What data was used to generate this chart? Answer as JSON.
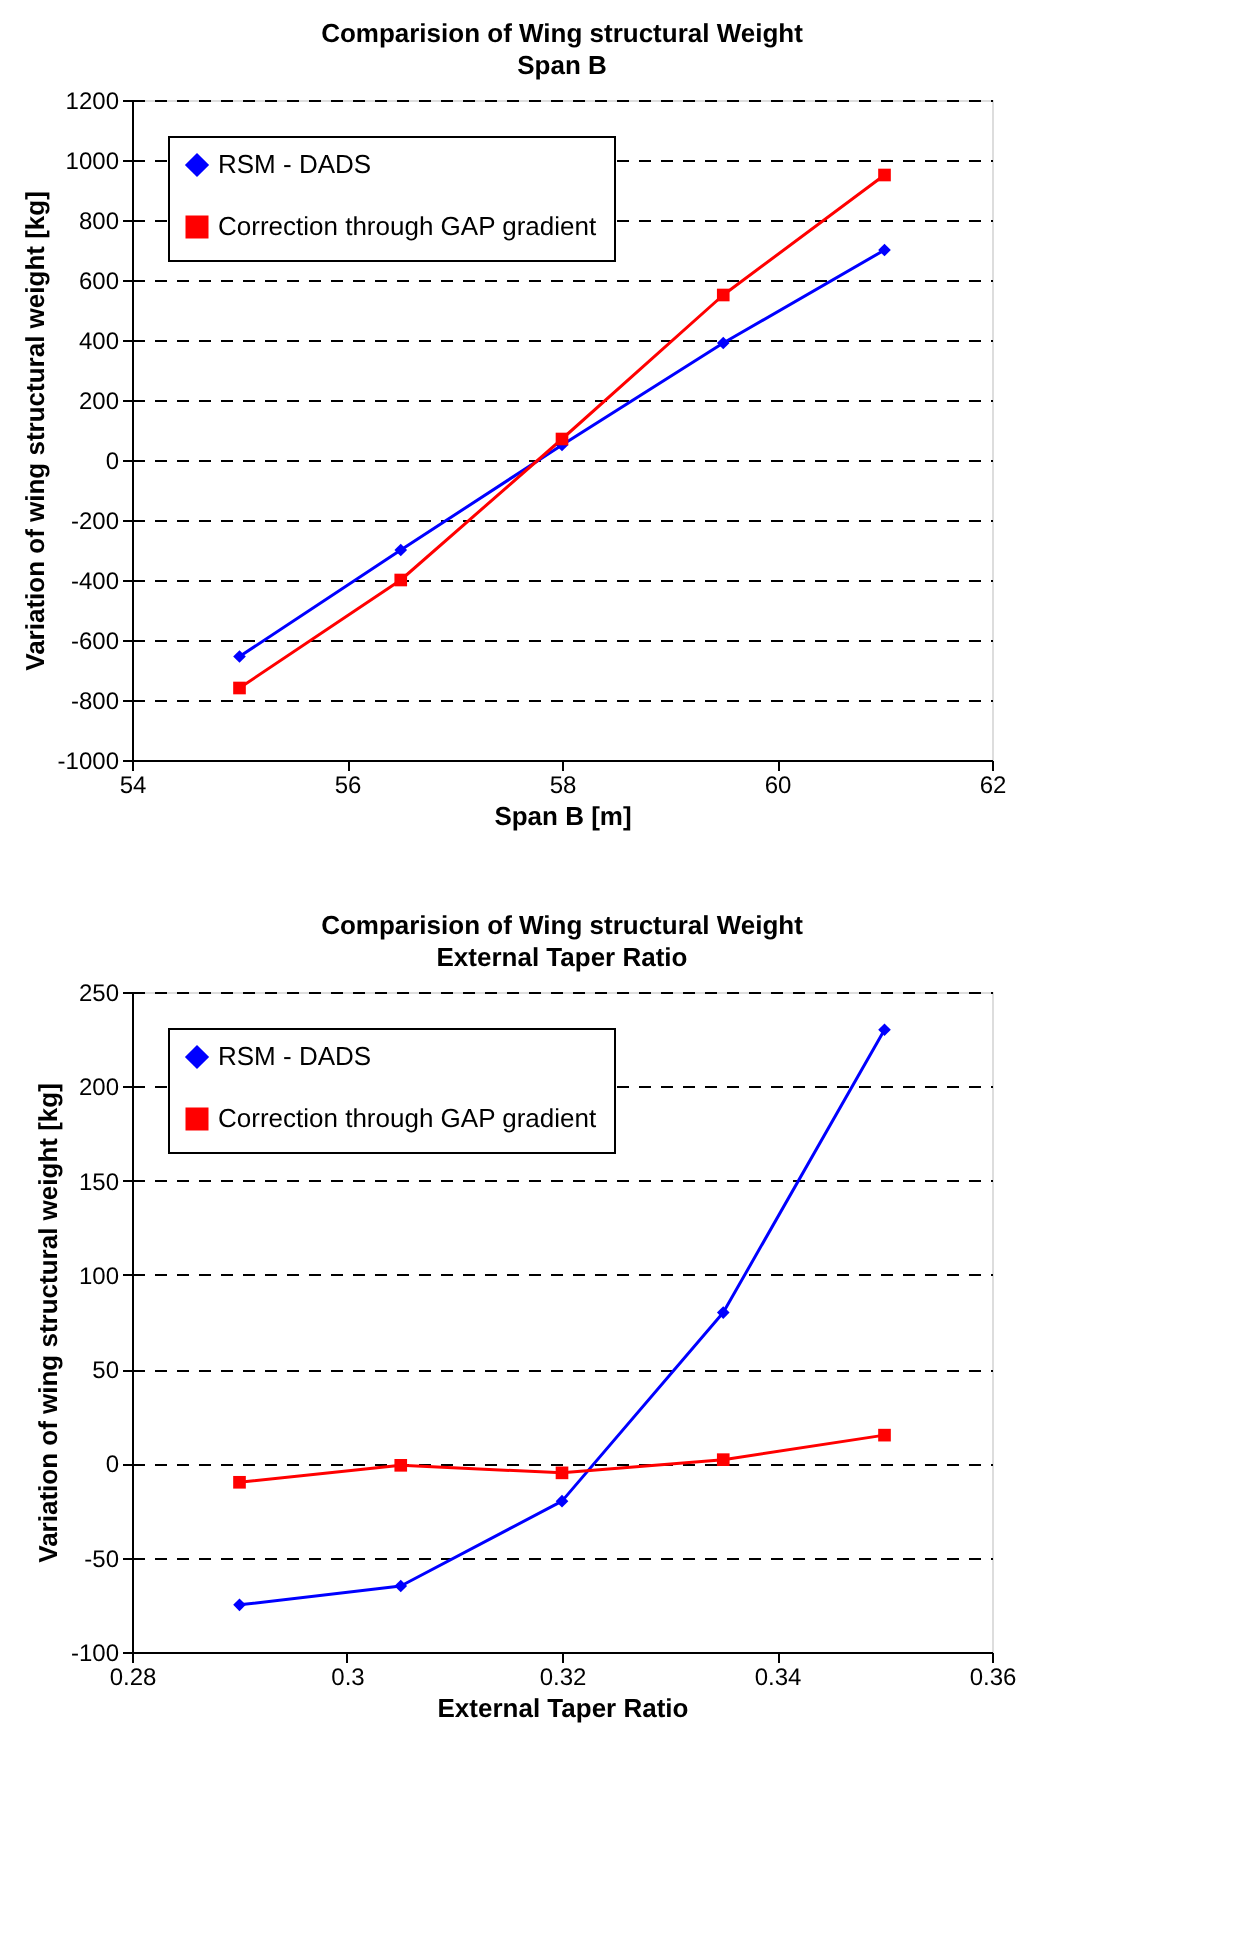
{
  "chart_data": [
    {
      "type": "line",
      "title": "Comparision of Wing structural Weight",
      "subtitle": "Span B",
      "xlabel": "Span B [m]",
      "ylabel": "Variation of wing structural weight [kg]",
      "x": [
        55,
        56.5,
        58,
        59.5,
        61
      ],
      "xlim": [
        54,
        62
      ],
      "xticks": [
        54,
        56,
        58,
        60,
        62
      ],
      "ylim": [
        -1000,
        1200
      ],
      "yticks": [
        -1000,
        -800,
        -600,
        -400,
        -200,
        0,
        200,
        400,
        600,
        800,
        1000,
        1200
      ],
      "grid": "y",
      "legend": "top left",
      "series": [
        {
          "name": "RSM - DADS",
          "color": "#0000ff",
          "marker": "diamond",
          "values": [
            -655,
            -300,
            50,
            390,
            700
          ]
        },
        {
          "name": "Correction through GAP gradient",
          "color": "#ff0000",
          "marker": "square",
          "values": [
            -760,
            -400,
            70,
            550,
            950
          ]
        }
      ]
    },
    {
      "type": "line",
      "title": "Comparision of Wing structural Weight",
      "subtitle": "External Taper Ratio",
      "xlabel": "External Taper Ratio",
      "ylabel": "Variation of wing structural weight [kg]",
      "x": [
        0.29,
        0.305,
        0.32,
        0.335,
        0.35
      ],
      "xlim": [
        0.28,
        0.36
      ],
      "xticks": [
        0.28,
        0.3,
        0.32,
        0.34,
        0.36
      ],
      "ylim": [
        -100,
        250
      ],
      "yticks": [
        -100,
        -50,
        0,
        50,
        100,
        150,
        200,
        250
      ],
      "grid": "y",
      "legend": "top left",
      "series": [
        {
          "name": "RSM - DADS",
          "color": "#0000ff",
          "marker": "diamond",
          "values": [
            -75,
            -65,
            -20,
            80,
            230
          ]
        },
        {
          "name": "Correction through GAP gradient",
          "color": "#ff0000",
          "marker": "square",
          "values": [
            -10,
            -1,
            -5,
            2,
            15
          ]
        }
      ]
    }
  ]
}
